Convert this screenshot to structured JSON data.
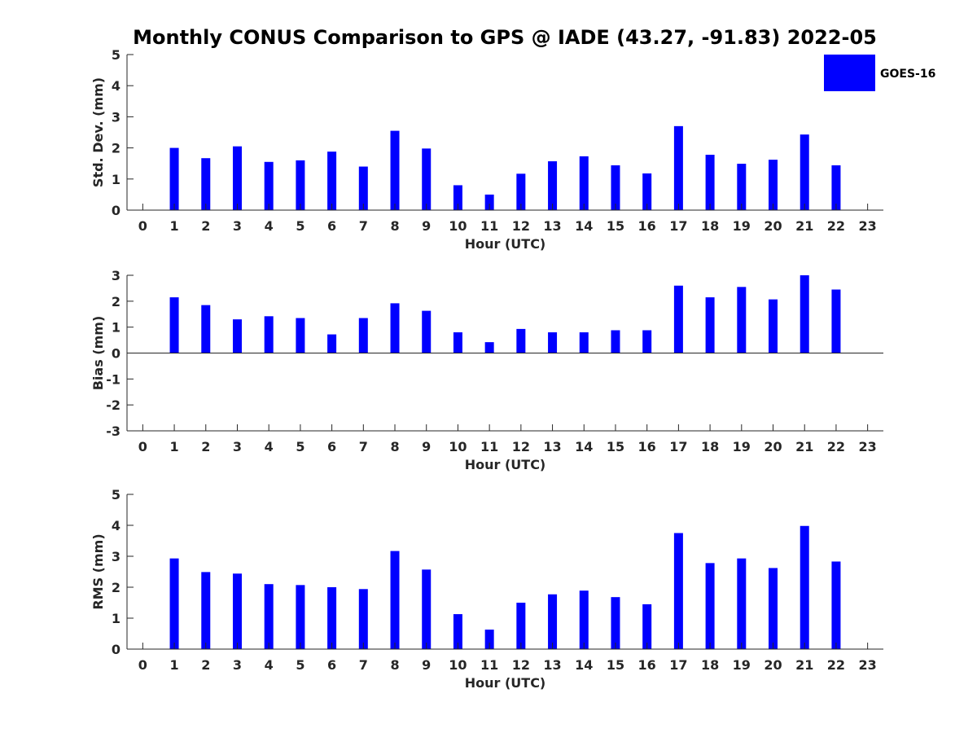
{
  "title": "Monthly CONUS Comparison to GPS @ IADE (43.27, -91.83) 2022-05",
  "colors": {
    "bar": "#0000ff",
    "axis": "#262626",
    "background": "#ffffff"
  },
  "legend": {
    "label": "GOES-16",
    "placement": "top-right"
  },
  "chart_data": [
    {
      "type": "bar",
      "ylabel": "Std. Dev. (mm)",
      "xlabel": "Hour (UTC)",
      "ylim": [
        0,
        5
      ],
      "yticks": [
        0,
        1,
        2,
        3,
        4,
        5
      ],
      "xlim": [
        -0.5,
        23.5
      ],
      "categories": [
        0,
        1,
        2,
        3,
        4,
        5,
        6,
        7,
        8,
        9,
        10,
        11,
        12,
        13,
        14,
        15,
        16,
        17,
        18,
        19,
        20,
        21,
        22,
        23
      ],
      "series": [
        {
          "name": "GOES-16",
          "values": [
            null,
            2.0,
            1.67,
            2.05,
            1.55,
            1.6,
            1.88,
            1.4,
            2.55,
            1.98,
            0.8,
            0.5,
            1.17,
            1.57,
            1.73,
            1.44,
            1.18,
            2.7,
            1.78,
            1.49,
            1.62,
            2.43,
            1.44,
            null
          ]
        }
      ],
      "grid": false
    },
    {
      "type": "bar",
      "ylabel": "Bias (mm)",
      "xlabel": "Hour (UTC)",
      "ylim": [
        -3,
        3
      ],
      "yticks": [
        -3,
        -2,
        -1,
        0,
        1,
        2,
        3
      ],
      "xlim": [
        -0.5,
        23.5
      ],
      "categories": [
        0,
        1,
        2,
        3,
        4,
        5,
        6,
        7,
        8,
        9,
        10,
        11,
        12,
        13,
        14,
        15,
        16,
        17,
        18,
        19,
        20,
        21,
        22,
        23
      ],
      "series": [
        {
          "name": "GOES-16",
          "values": [
            null,
            2.15,
            1.85,
            1.3,
            1.42,
            1.35,
            0.72,
            1.35,
            1.92,
            1.63,
            0.8,
            0.42,
            0.93,
            0.8,
            0.8,
            0.88,
            0.88,
            2.6,
            2.15,
            2.55,
            2.07,
            3.0,
            2.45,
            null
          ]
        }
      ],
      "grid": false
    },
    {
      "type": "bar",
      "ylabel": "RMS (mm)",
      "xlabel": "Hour (UTC)",
      "ylim": [
        0,
        5
      ],
      "yticks": [
        0,
        1,
        2,
        3,
        4,
        5
      ],
      "xlim": [
        -0.5,
        23.5
      ],
      "categories": [
        0,
        1,
        2,
        3,
        4,
        5,
        6,
        7,
        8,
        9,
        10,
        11,
        12,
        13,
        14,
        15,
        16,
        17,
        18,
        19,
        20,
        21,
        22,
        23
      ],
      "series": [
        {
          "name": "GOES-16",
          "values": [
            null,
            2.93,
            2.49,
            2.44,
            2.1,
            2.07,
            2.0,
            1.94,
            3.17,
            2.57,
            1.13,
            0.63,
            1.5,
            1.77,
            1.89,
            1.68,
            1.45,
            3.75,
            2.78,
            2.93,
            2.62,
            3.98,
            2.83,
            null
          ]
        }
      ],
      "grid": false
    }
  ]
}
